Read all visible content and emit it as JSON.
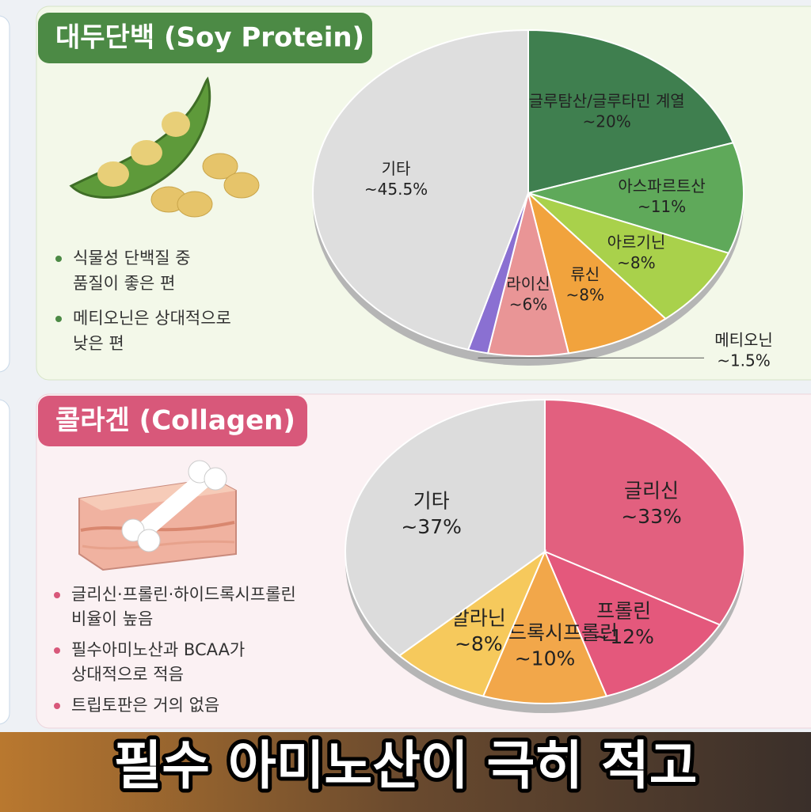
{
  "chart_data": [
    {
      "type": "pie",
      "title": "대두단백 (Soy Protein)",
      "categories": [
        "글루탐산/글루타민 계열",
        "아스파르트산",
        "아르기닌",
        "류신",
        "라이신",
        "메티오닌",
        "기타"
      ],
      "values": [
        20,
        11,
        8,
        8,
        6,
        1.5,
        45.5
      ],
      "value_labels": [
        "~20%",
        "~11%",
        "~8%",
        "~8%",
        "~6%",
        "~1.5%",
        "~45.5%"
      ],
      "colors": [
        "#3f7f4f",
        "#5fa95a",
        "#a9d14b",
        "#f1a33d",
        "#e99596",
        "#8a70d2",
        "#dedede"
      ],
      "notes": [
        [
          "식물성 단백질 중",
          "품질이 좋은 편"
        ],
        [
          "메티오닌은 상대적으로",
          "낮은 편"
        ]
      ]
    },
    {
      "type": "pie",
      "title": "콜라겐 (Collagen)",
      "categories": [
        "글리신",
        "프롤린",
        "하이드록시프롤린",
        "알라닌",
        "기타"
      ],
      "values": [
        33,
        12,
        10,
        8,
        37
      ],
      "value_labels": [
        "~33%",
        "~12%",
        "~10%",
        "~8%",
        "~37%"
      ],
      "colors": [
        "#e2607f",
        "#e4587c",
        "#f2a74a",
        "#f6c95c",
        "#dcdcdc"
      ],
      "notes": [
        [
          "글리신·프롤린·하이드록시프롤린",
          "비율이 높음"
        ],
        [
          "필수아미노산과 BCAA가",
          "상대적으로 적음"
        ],
        [
          "트립토판은 거의 없음"
        ]
      ]
    }
  ],
  "caption": "필수 아미노산이 극히 적고"
}
